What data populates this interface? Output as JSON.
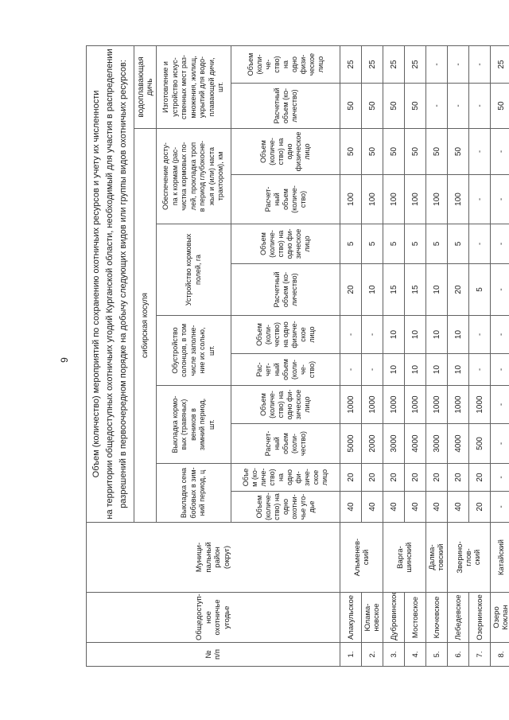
{
  "page": {
    "number": "9"
  },
  "colors": {
    "background": "#ffffff",
    "grid": "#616161",
    "text": "#1b1b1b"
  },
  "table": {
    "title": "Объем (количество) мероприятий по сохранению охотничьих ресурсов и учету их численности\nна территории общедоступных охотничьих угодий Курганской области, необходимый для участия в распределении\nразрешений в первоочередном порядке на добычу следующих видов или группы видов охотничьих ресурсов:",
    "corner_headers": {
      "num": "№\nп/п",
      "ground": "Общедоступ-\nное охотничье\nугодье",
      "district": "Муници-\nпальный\nрайон\n(округ)"
    },
    "species_groups": [
      {
        "label": "сибирская косуля",
        "colspan": 10
      },
      {
        "label": "водоплавающая\nдичь",
        "colspan": 2
      }
    ],
    "measures": [
      {
        "label": "Выкладка сена\nбобовых в зим-\nний период, ц",
        "col1": "Объем\n(количе-\nство) на\nодно\nохотни-\nчье уго-\nдье",
        "col2": "Объе\nм (ко-\nличе-\nство)\nна\nодно\nфи-\nзиче-\nское\nлицо"
      },
      {
        "label": "Выкладка кормо-\nвых (травяных)\nвеников в\nзимний период,\nшт.",
        "col1": "Расчет-\nный\nобъем\n(коли-\nчество)",
        "col2": "Объем\n(количе-\nство) на\nодно фи-\nзическое\nлицо"
      },
      {
        "label": "Обустройство\nсолонцов, в том\nчисле заполне-\nние их солью,\nшт.",
        "col1": "Рас-\nчет-\nный\nобъем\n(коли-\nче-\nство)",
        "col2": "Объем\n(коли-\nчество)\nна одно\nфизиче-\nское\nлицо"
      },
      {
        "label": "Устройство кормовых\nполей, га",
        "col1": "Расчетный\nобъем (ко-\nличество)",
        "col2": "Объем\n(количе-\nство) на\nодно фи-\nзическое\nлицо"
      },
      {
        "label": "Обеспечение досту-\nпа к кормам  (рас-\nчистка кормовых по-\nлей, прокладка троп\nв период глубокосне-\nжья и (или) наста\nтрактором), км",
        "col1": "Расчет-\nный\nобъем\n(количе-\nство)",
        "col2": "Объем\n(количе-\nство) на\nодно физическое\nлицо"
      },
      {
        "label": "Изготовление и\nустройство искус-\nственных мест раз-\nмножения, жилищ,\nукрытий для водо-\nплавающей дичи,\nшт.",
        "col1": "Расчетный\nобъем (ко-\nличество)",
        "col2": "Объем\n(коли-\nче-\nство)\nна\nодно\nфизи-\nческое\nлицо"
      }
    ],
    "rows": [
      {
        "num": "1.",
        "ground": "Алакульское",
        "district": "Альменев-\nский",
        "district_rowspan": 2,
        "values": [
          "40",
          "20",
          "5000",
          "1000",
          "-",
          "-",
          "20",
          "5",
          "100",
          "50",
          "50",
          "25"
        ]
      },
      {
        "num": "2.",
        "ground": "Юлама-\nновское",
        "values": [
          "40",
          "20",
          "2000",
          "1000",
          "-",
          "-",
          "10",
          "5",
          "100",
          "50",
          "50",
          "25"
        ]
      },
      {
        "num": "3.",
        "ground": "Дубровинское",
        "district": "Варга-\nшинский",
        "district_rowspan": 2,
        "values": [
          "40",
          "20",
          "3000",
          "1000",
          "10",
          "10",
          "15",
          "5",
          "100",
          "50",
          "50",
          "25"
        ]
      },
      {
        "num": "4.",
        "ground": "Мостовское",
        "values": [
          "40",
          "20",
          "4000",
          "1000",
          "10",
          "10",
          "15",
          "5",
          "100",
          "50",
          "50",
          "25"
        ]
      },
      {
        "num": "5.",
        "ground": "Ключевское",
        "district": "Далма-\nтовский",
        "district_rowspan": 1,
        "values": [
          "40",
          "20",
          "3000",
          "1000",
          "10",
          "10",
          "10",
          "5",
          "100",
          "50",
          "-",
          "-"
        ]
      },
      {
        "num": "6.",
        "ground": "Лебедевское",
        "district": "Зверино-\nглов-\nский",
        "district_rowspan": 2,
        "values": [
          "40",
          "20",
          "4000",
          "1000",
          "10",
          "10",
          "20",
          "5",
          "100",
          "50",
          "-",
          "-"
        ]
      },
      {
        "num": "7.",
        "ground": "Озернинское",
        "values": [
          "20",
          "20",
          "500",
          "1000",
          "-",
          "-",
          "5",
          "-",
          "-",
          "-",
          "-",
          "-"
        ]
      },
      {
        "num": "8.",
        "ground": "Озеро Коклан",
        "district": "Катайский",
        "district_rowspan": 1,
        "values": [
          "-",
          "-",
          "-",
          "-",
          "-",
          "-",
          "-",
          "-",
          "-",
          "-",
          "50",
          "25"
        ]
      }
    ]
  }
}
